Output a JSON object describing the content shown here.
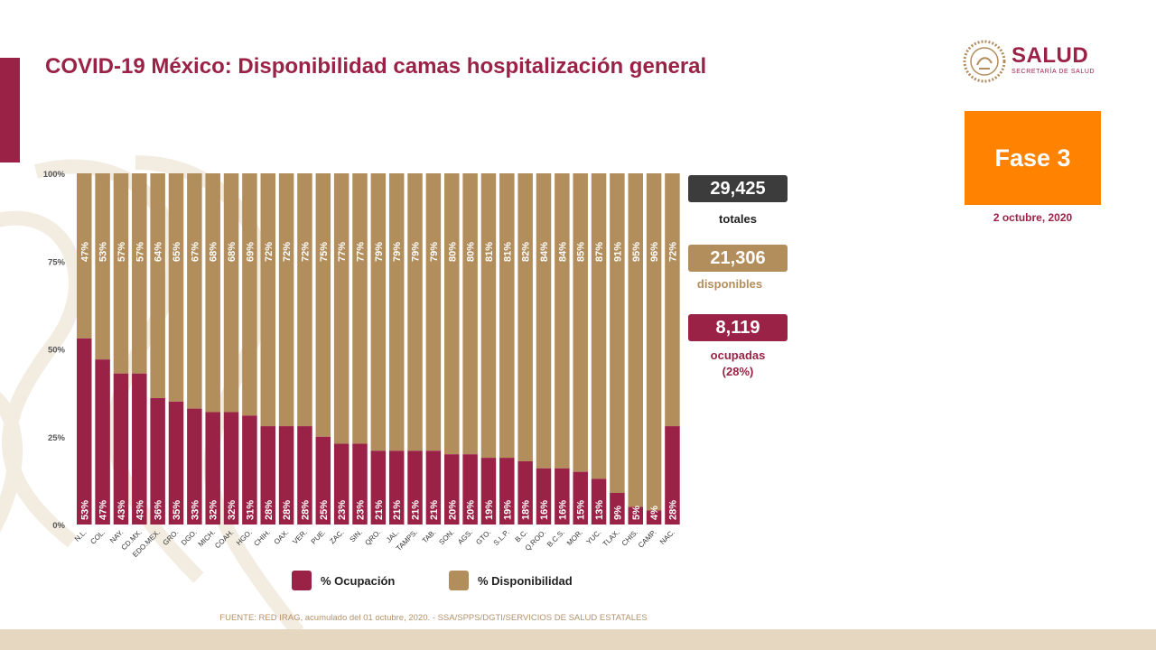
{
  "title": "COVID-19 México: Disponibilidad camas hospitalización general",
  "logo": {
    "word": "SALUD",
    "subtitle": "SECRETARÍA DE SALUD"
  },
  "phase": "Fase 3",
  "date": "2 octubre, 2020",
  "stats": {
    "totales": {
      "value": "29,425",
      "label": "totales"
    },
    "disponibles": {
      "value": "21,306",
      "label": "disponibles"
    },
    "ocupadas": {
      "value": "8,119",
      "label": "ocupadas",
      "pct": "(28%)"
    }
  },
  "colors": {
    "ocupacion": "#9b2247",
    "disponibilidad": "#b38e5d",
    "totales": "#3c3c3c",
    "phase": "#ff8200"
  },
  "legend": {
    "ocupacion": "% Ocupación",
    "disponibilidad": "% Disponibilidad"
  },
  "source": "FUENTE: RED IRAG, acumulado del 01 octubre, 2020. - SSA/SPPS/DGTI/SERVICIOS DE SALUD ESTATALES",
  "chart_data": {
    "type": "bar",
    "stacked": true,
    "y_ticks": [
      "0%",
      "25%",
      "50%",
      "75%",
      "100%"
    ],
    "ylim": [
      0,
      100
    ],
    "categories": [
      "N.L.",
      "COL.",
      "NAY.",
      "CD.MX.",
      "EDO.MEX.",
      "GRO.",
      "DGO.",
      "MICH.",
      "COAH.",
      "HGO.",
      "CHIH.",
      "OAX.",
      "VER.",
      "PUE.",
      "ZAC.",
      "SIN.",
      "QRO.",
      "JAL.",
      "TAMPS.",
      "TAB.",
      "SON.",
      "AGS.",
      "GTO.",
      "S.L.P.",
      "B.C.",
      "Q.ROO.",
      "B.C.S.",
      "MOR.",
      "YUC.",
      "TLAX.",
      "CHIS.",
      "CAMP.",
      "NAC."
    ],
    "series": [
      {
        "name": "% Ocupación",
        "values": [
          53,
          47,
          43,
          43,
          36,
          35,
          33,
          32,
          32,
          31,
          28,
          28,
          28,
          25,
          23,
          23,
          21,
          21,
          21,
          21,
          20,
          20,
          19,
          19,
          18,
          16,
          16,
          15,
          13,
          9,
          5,
          4,
          28
        ]
      },
      {
        "name": "% Disponibilidad",
        "values": [
          47,
          53,
          57,
          57,
          64,
          65,
          67,
          68,
          68,
          69,
          72,
          72,
          72,
          75,
          77,
          77,
          79,
          79,
          79,
          79,
          80,
          80,
          81,
          81,
          82,
          84,
          84,
          85,
          87,
          91,
          95,
          96,
          72
        ]
      }
    ]
  }
}
